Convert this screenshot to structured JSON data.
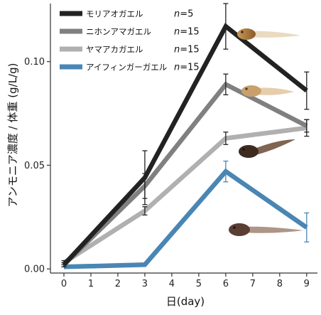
{
  "chart_data": {
    "type": "line",
    "xlabel": "日(day)",
    "ylabel": "アンモニア濃度 / 体重 (g/L/g)",
    "x": [
      0,
      3,
      6,
      9
    ],
    "xticks": [
      "0",
      "1",
      "2",
      "3",
      "4",
      "5",
      "6",
      "7",
      "8",
      "9"
    ],
    "xlim": [
      -0.5,
      9.4
    ],
    "ylim": [
      -0.002,
      0.128
    ],
    "yticks": [
      "0.00",
      "0.05",
      "0.10"
    ],
    "grid": false,
    "legend_position": "top-left",
    "series": [
      {
        "name": "モリアオガエル",
        "n_label": "=5",
        "color": "#222222",
        "values": [
          0.002,
          0.044,
          0.117,
          0.086
        ],
        "errors": [
          0.001,
          0.013,
          0.011,
          0.009
        ]
      },
      {
        "name": "ニホンアマガエル",
        "n_label": "=15",
        "color": "#808080",
        "values": [
          0.002,
          0.04,
          0.089,
          0.069
        ],
        "errors": [
          0.001,
          0.006,
          0.005,
          0.003
        ]
      },
      {
        "name": "ヤマアカガエル",
        "n_label": "=15",
        "color": "#b0b0b0",
        "values": [
          0.003,
          0.028,
          0.063,
          0.068
        ],
        "errors": [
          0.001,
          0.002,
          0.003,
          0.004
        ]
      },
      {
        "name": "アイフィンガーガエル",
        "n_label": "=15",
        "color": "#4a86b4",
        "values": [
          0.001,
          0.002,
          0.047,
          0.02
        ],
        "errors": [
          0.0,
          0.0,
          0.005,
          0.007
        ]
      }
    ],
    "n_prefix": "n"
  }
}
